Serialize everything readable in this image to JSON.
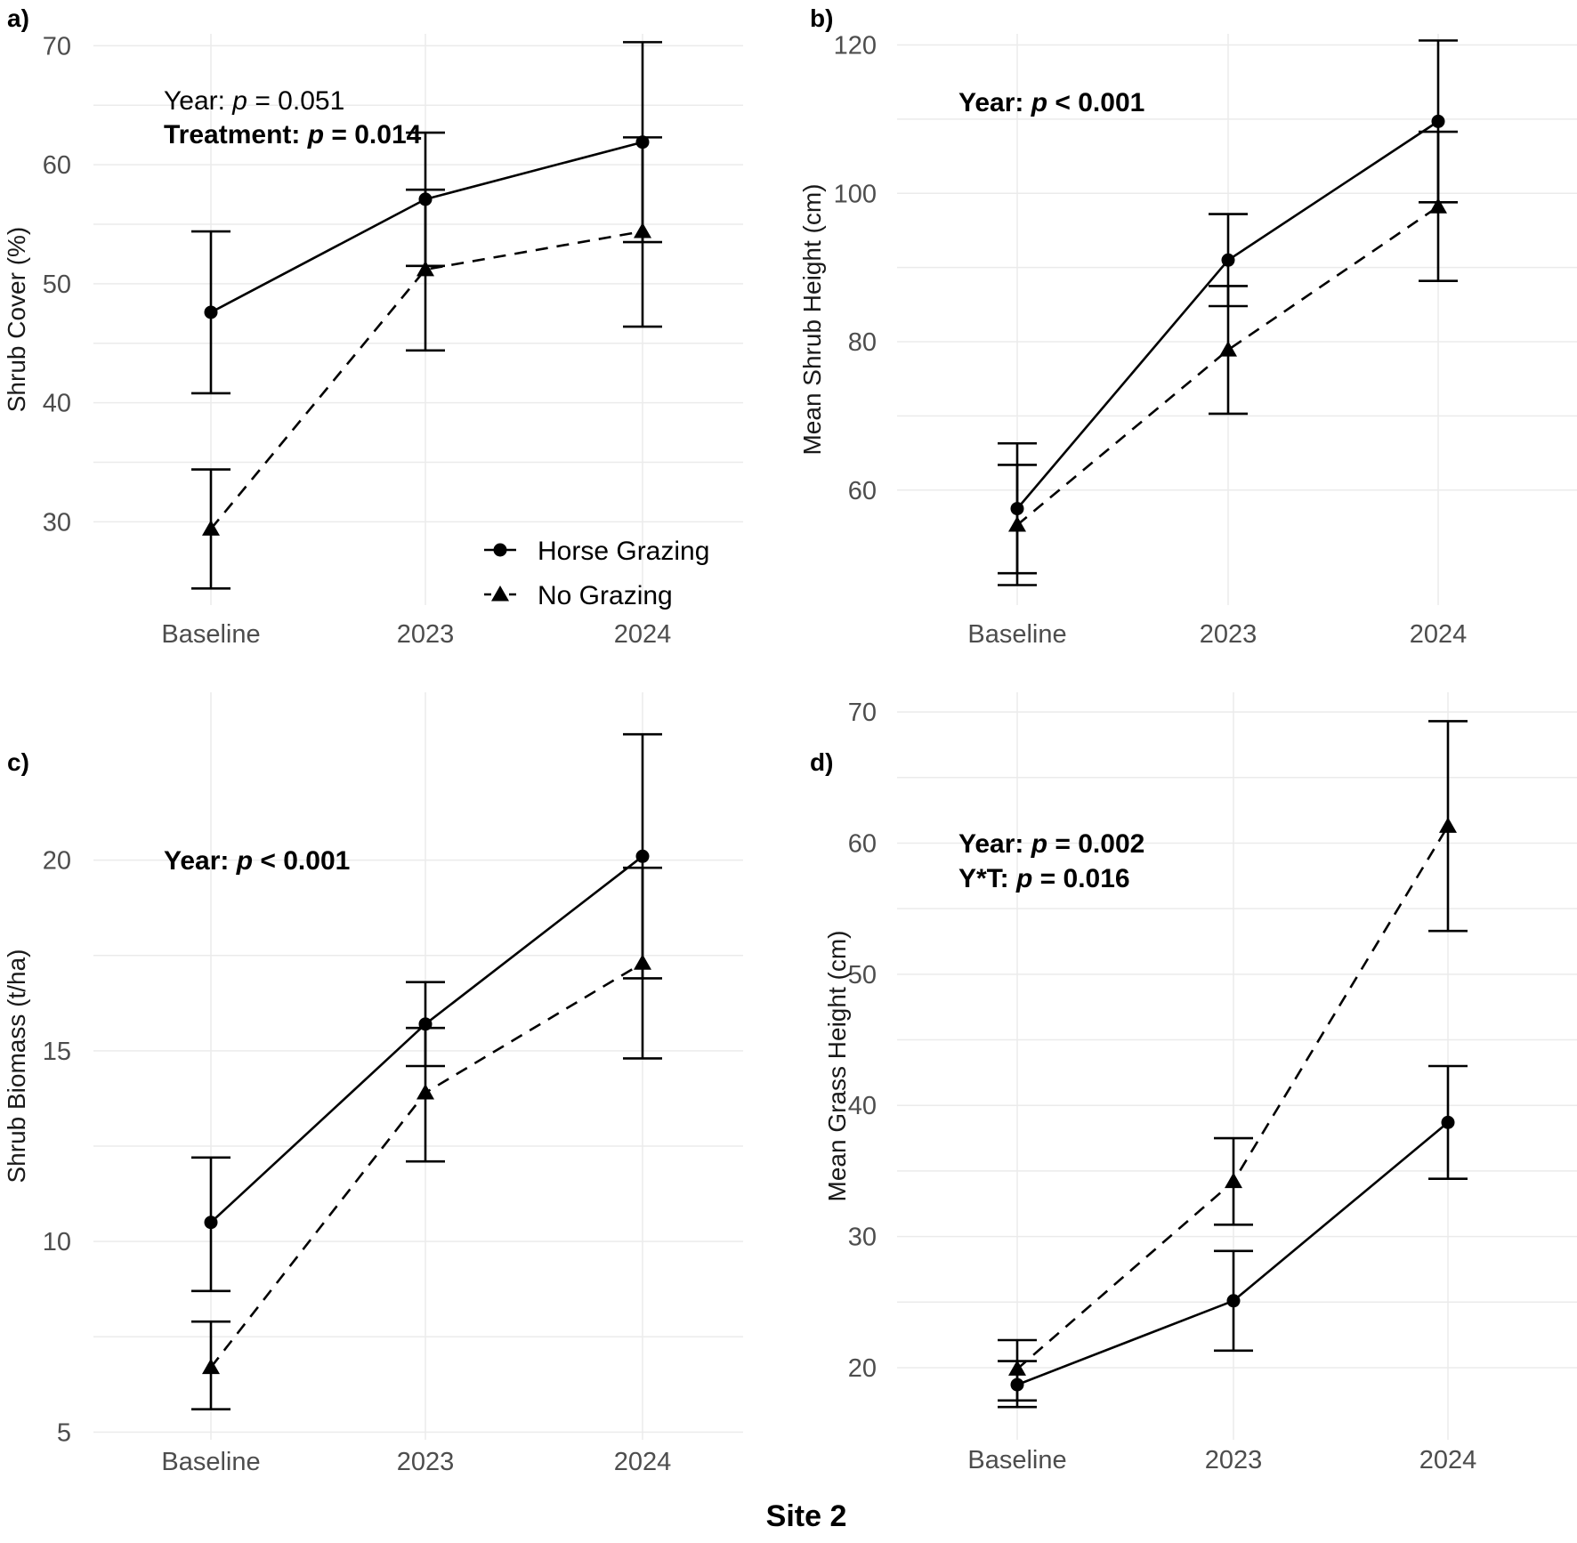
{
  "figure_title": "Site 2",
  "legend": [
    {
      "label": "Horse Grazing",
      "marker": "circle",
      "line": "solid"
    },
    {
      "label": "No Grazing",
      "marker": "triangle",
      "line": "dashed"
    }
  ],
  "colors": {
    "series": "#000000",
    "grid": "#ebebeb",
    "tick": "#4d4d4d"
  },
  "chart_data": [
    {
      "type": "line",
      "panel": "a)",
      "categories": [
        "Baseline",
        "2023",
        "2024"
      ],
      "ylabel": "Shrub Cover (%)",
      "xlabel": "",
      "ylim": [
        23,
        71
      ],
      "yticks": [
        "30",
        "40",
        "50",
        "60",
        "70"
      ],
      "annotations": [
        {
          "label": "Year: ",
          "p": "p",
          "rest": " = 0.051",
          "bold": false
        },
        {
          "label": "Treatment: ",
          "p": "p",
          "rest": " = 0.014",
          "bold": true
        }
      ],
      "series": [
        {
          "name": "Horse Grazing",
          "values": [
            47.6,
            57.1,
            61.9
          ],
          "lower": [
            40.8,
            51.5,
            53.5
          ],
          "upper": [
            54.4,
            62.7,
            70.3
          ]
        },
        {
          "name": "No Grazing",
          "values": [
            29.4,
            51.2,
            54.4
          ],
          "lower": [
            24.4,
            44.4,
            46.4
          ],
          "upper": [
            34.4,
            57.9,
            62.3
          ]
        }
      ]
    },
    {
      "type": "line",
      "panel": "b)",
      "categories": [
        "Baseline",
        "2023",
        "2024"
      ],
      "ylabel": "Mean Shrub Height (cm)",
      "xlabel": "",
      "ylim": [
        44.5,
        121.5
      ],
      "yticks": [
        "60",
        "80",
        "100",
        "120"
      ],
      "annotations": [
        {
          "label": "Year: ",
          "p": "p",
          "rest": " < 0.001",
          "bold": true
        }
      ],
      "series": [
        {
          "name": "Horse Grazing",
          "values": [
            57.5,
            91.0,
            109.7
          ],
          "lower": [
            48.8,
            84.8,
            98.8
          ],
          "upper": [
            66.3,
            97.2,
            120.6
          ]
        },
        {
          "name": "No Grazing",
          "values": [
            55.3,
            78.9,
            98.2
          ],
          "lower": [
            47.2,
            70.3,
            88.2
          ],
          "upper": [
            63.4,
            87.5,
            108.3
          ]
        }
      ]
    },
    {
      "type": "line",
      "panel": "c)",
      "categories": [
        "Baseline",
        "2023",
        "2024"
      ],
      "ylabel": "Shrub Biomass (t/ha)",
      "xlabel": "",
      "ylim": [
        4.8,
        24.4
      ],
      "yticks": [
        "5",
        "10",
        "15",
        "20"
      ],
      "annotations": [
        {
          "label": "Year: ",
          "p": "p",
          "rest": " < 0.001",
          "bold": true
        }
      ],
      "series": [
        {
          "name": "Horse Grazing",
          "values": [
            10.5,
            15.7,
            20.1
          ],
          "lower": [
            8.7,
            14.6,
            16.9
          ],
          "upper": [
            12.2,
            16.8,
            23.3
          ]
        },
        {
          "name": "No Grazing",
          "values": [
            6.7,
            13.9,
            17.3
          ],
          "lower": [
            5.6,
            12.1,
            14.8
          ],
          "upper": [
            7.9,
            15.6,
            19.8
          ]
        }
      ]
    },
    {
      "type": "line",
      "panel": "d)",
      "categories": [
        "Baseline",
        "2023",
        "2024"
      ],
      "ylabel": "Mean Grass Height (cm)",
      "xlabel": "",
      "ylim": [
        14.5,
        71.5
      ],
      "yticks": [
        "20",
        "30",
        "40",
        "50",
        "60",
        "70"
      ],
      "annotations": [
        {
          "label": "Year: ",
          "p": "p",
          "rest": " = 0.002",
          "bold": true
        },
        {
          "label": "Y*T: ",
          "p": "p",
          "rest": " = 0.016",
          "bold": true
        }
      ],
      "series": [
        {
          "name": "Horse Grazing",
          "values": [
            18.7,
            25.1,
            38.7
          ],
          "lower": [
            17.0,
            21.3,
            34.4
          ],
          "upper": [
            20.5,
            28.9,
            43.0
          ]
        },
        {
          "name": "No Grazing",
          "values": [
            19.9,
            34.2,
            61.3
          ],
          "lower": [
            17.5,
            30.9,
            53.3
          ],
          "upper": [
            22.1,
            37.5,
            69.3
          ]
        }
      ]
    }
  ]
}
